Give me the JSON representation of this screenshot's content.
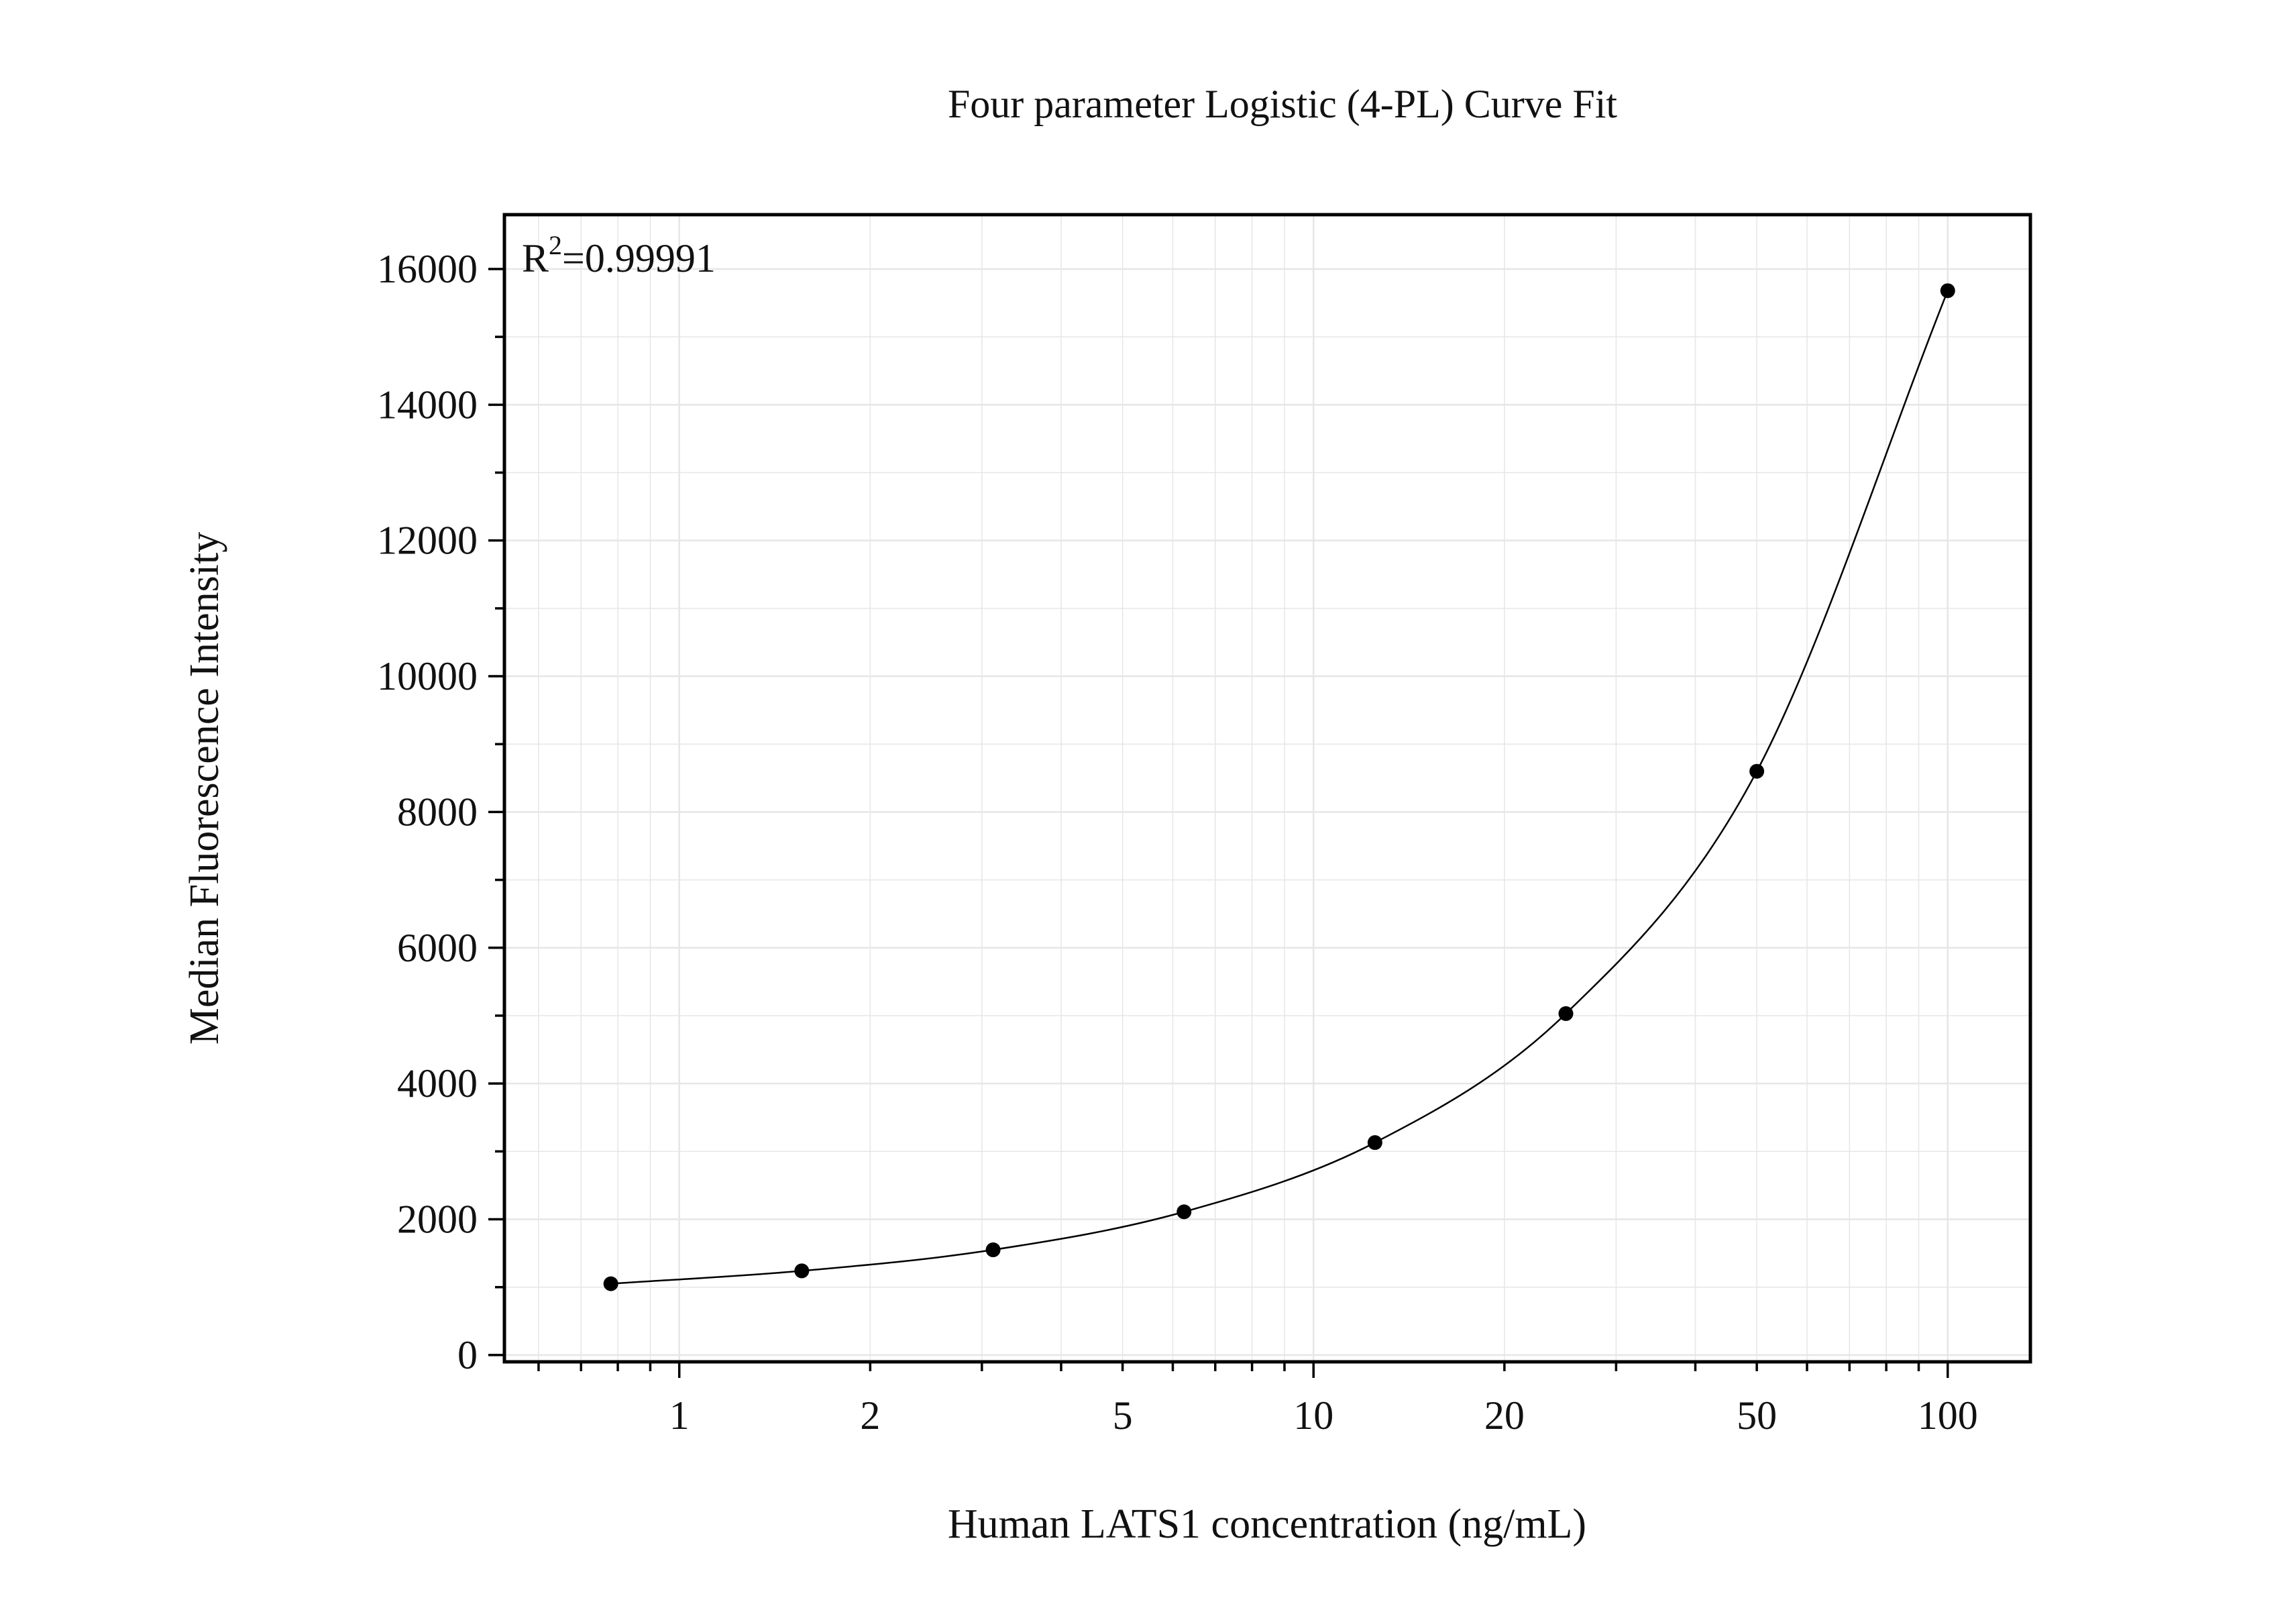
{
  "chart_data": {
    "type": "scatter",
    "title": "Four parameter Logistic (4-PL) Curve Fit",
    "xlabel": "Human LATS1 concentration (ng/mL)",
    "ylabel": "Median Fluorescence Intensity",
    "x_scale": "log",
    "xlim": [
      0.53,
      135
    ],
    "ylim": [
      -100,
      16800
    ],
    "grid": true,
    "x_ticks": [
      {
        "value": 1,
        "label": "1"
      },
      {
        "value": 2,
        "label": "2"
      },
      {
        "value": 5,
        "label": "5"
      },
      {
        "value": 10,
        "label": "10"
      },
      {
        "value": 20,
        "label": "20"
      },
      {
        "value": 50,
        "label": "50"
      },
      {
        "value": 100,
        "label": "100"
      }
    ],
    "y_ticks": [
      {
        "value": 0,
        "label": "0"
      },
      {
        "value": 2000,
        "label": "2000"
      },
      {
        "value": 4000,
        "label": "4000"
      },
      {
        "value": 6000,
        "label": "6000"
      },
      {
        "value": 8000,
        "label": "8000"
      },
      {
        "value": 10000,
        "label": "10000"
      },
      {
        "value": 12000,
        "label": "12000"
      },
      {
        "value": 14000,
        "label": "14000"
      },
      {
        "value": 16000,
        "label": "16000"
      }
    ],
    "series": [
      {
        "type": "scatter",
        "x": [
          0.78,
          1.56,
          3.125,
          6.25,
          12.5,
          25,
          50,
          100
        ],
        "y": [
          1050,
          1240,
          1550,
          2110,
          3130,
          5030,
          8600,
          15680
        ]
      }
    ],
    "annotation": {
      "r2_prefix": "R",
      "r2_superscript": "2",
      "r2_value": "=0.99991"
    },
    "colors": {
      "points": "#000000",
      "curve": "#000000",
      "grid": "#e6e6e6",
      "frame": "#000000"
    }
  }
}
